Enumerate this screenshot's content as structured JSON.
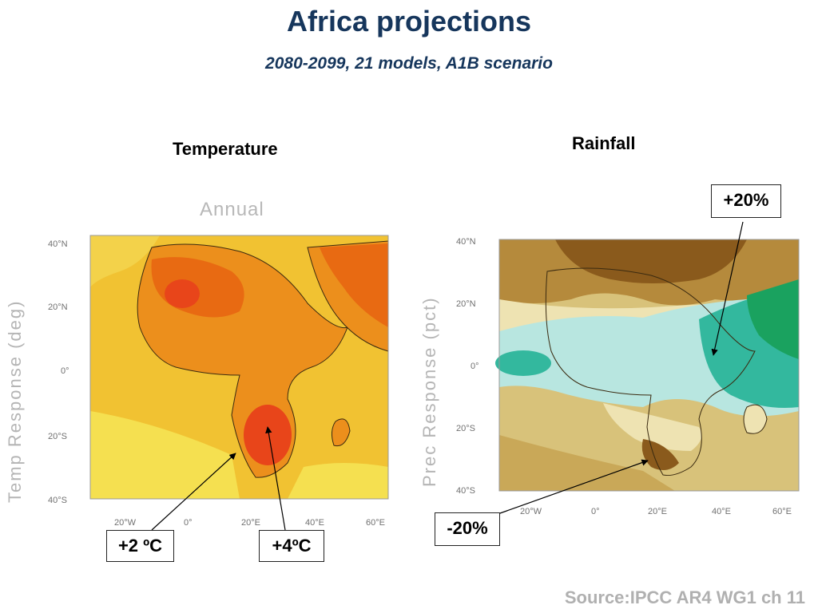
{
  "slide": {
    "title": "Africa projections",
    "subtitle": "2080-2099, 21 models, A1B scenario",
    "source": "Source:IPCC AR4 WG1 ch 11"
  },
  "temperature_panel": {
    "heading": "Temperature",
    "map_title": "Annual",
    "y_axis_title": "Temp Response (deg)",
    "lat_ticks": [
      "40°N",
      "20°N",
      "0°",
      "20°S",
      "40°S"
    ],
    "lon_ticks": [
      "20°W",
      "0°",
      "20°E",
      "40°E",
      "60°E"
    ],
    "callouts": [
      "+2 ºC",
      "+4ºC"
    ],
    "colors": {
      "background": "#f1c232",
      "light_yellow": "#f5e050",
      "orange": "#ec8f1c",
      "dark_orange": "#e86a12",
      "red_orange": "#e8451a"
    }
  },
  "rainfall_panel": {
    "heading": "Rainfall",
    "y_axis_title": "Prec Response (pct)",
    "lat_ticks": [
      "40°N",
      "20°N",
      "0°",
      "20°S",
      "40°S"
    ],
    "lon_ticks": [
      "20°W",
      "0°",
      "20°E",
      "40°E",
      "60°E"
    ],
    "callouts": [
      "+20%",
      "-20%"
    ],
    "colors": {
      "tan": "#d8c27a",
      "dark_brown": "#8a5a1c",
      "brown": "#b58a3c",
      "pale": "#eee3b2",
      "light_cyan": "#b8e6e0",
      "teal": "#33b89e",
      "green": "#1aa25f"
    }
  }
}
